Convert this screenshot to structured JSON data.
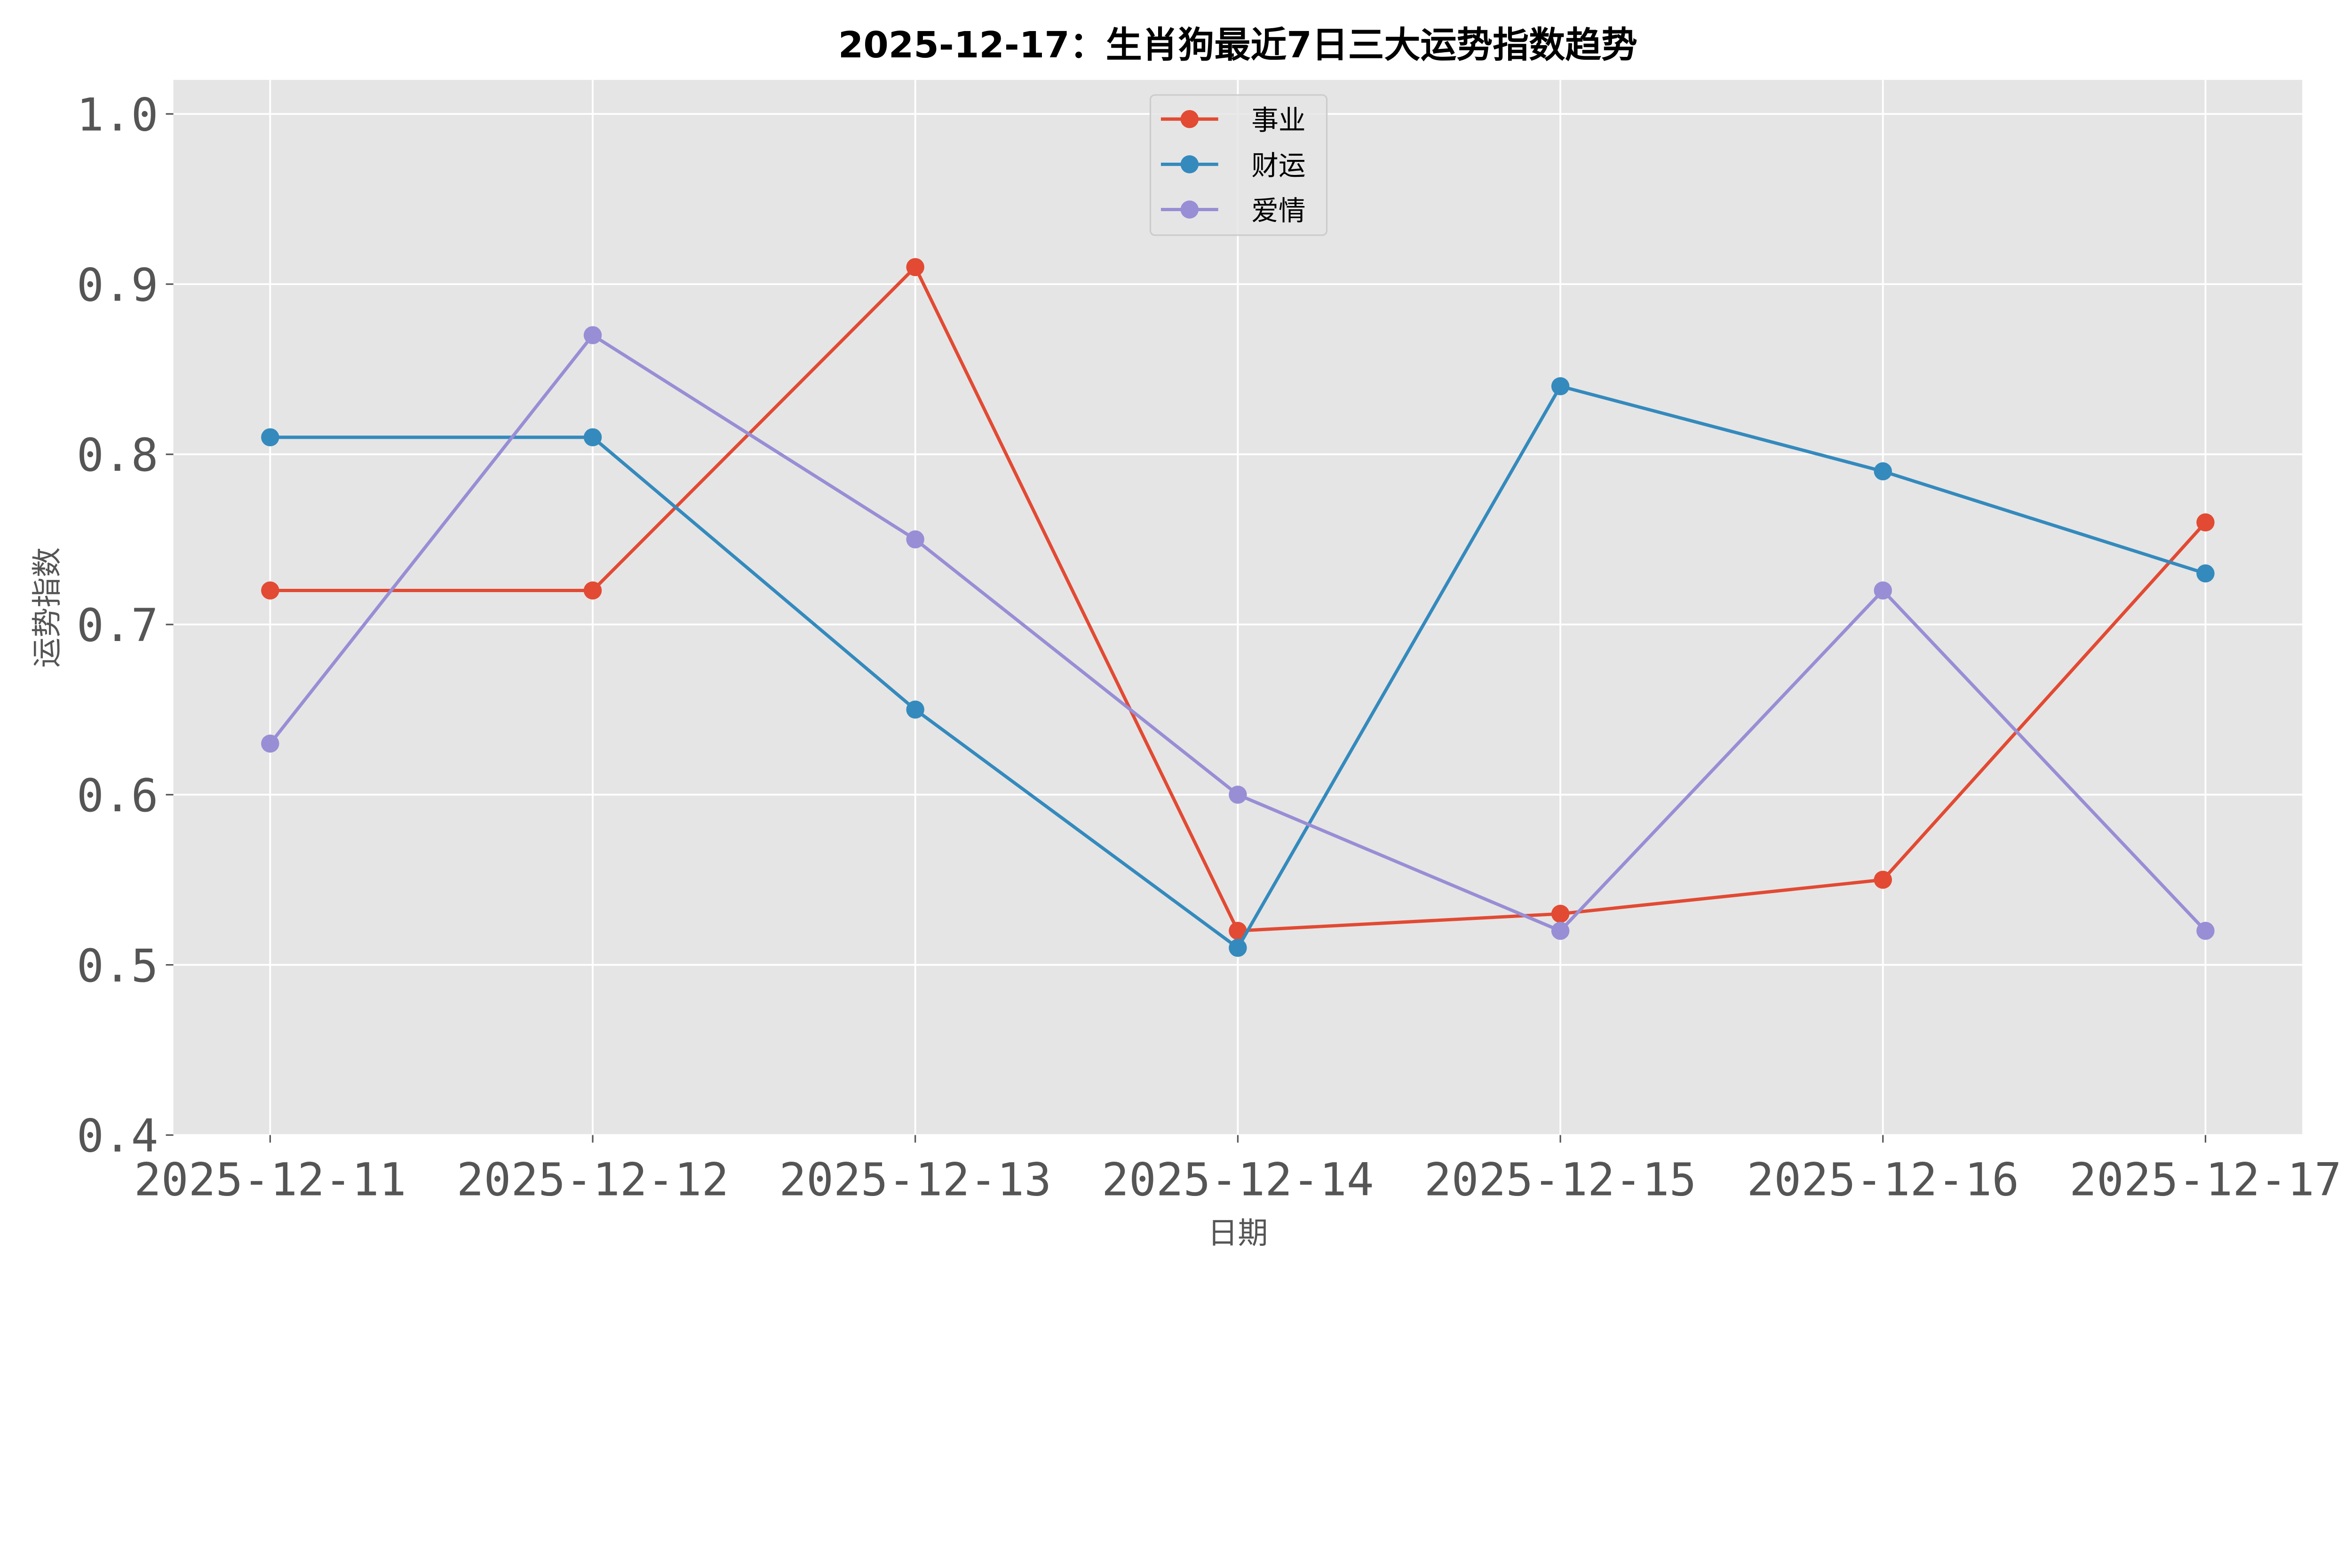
{
  "chart_data": {
    "type": "line",
    "title": "2025-12-17：生肖狗最近7日三大运势指数趋势",
    "xlabel": "日期",
    "ylabel": "运势指数",
    "categories": [
      "2025-12-11",
      "2025-12-12",
      "2025-12-13",
      "2025-12-14",
      "2025-12-15",
      "2025-12-16",
      "2025-12-17"
    ],
    "ylim": [
      0.4,
      1.02
    ],
    "yticks": [
      "0.4",
      "0.5",
      "0.6",
      "0.7",
      "0.8",
      "0.9",
      "1.0"
    ],
    "grid": true,
    "legend_position": "top-center",
    "background": "#e5e5e5",
    "series": [
      {
        "name": "事业",
        "color": "#e24a33",
        "values": [
          0.72,
          0.72,
          0.91,
          0.52,
          0.53,
          0.55,
          0.76
        ]
      },
      {
        "name": "财运",
        "color": "#348abd",
        "values": [
          0.81,
          0.81,
          0.65,
          0.51,
          0.84,
          0.79,
          0.73
        ]
      },
      {
        "name": "爱情",
        "color": "#988ed5",
        "values": [
          0.63,
          0.87,
          0.75,
          0.6,
          0.52,
          0.72,
          0.52
        ]
      }
    ]
  }
}
